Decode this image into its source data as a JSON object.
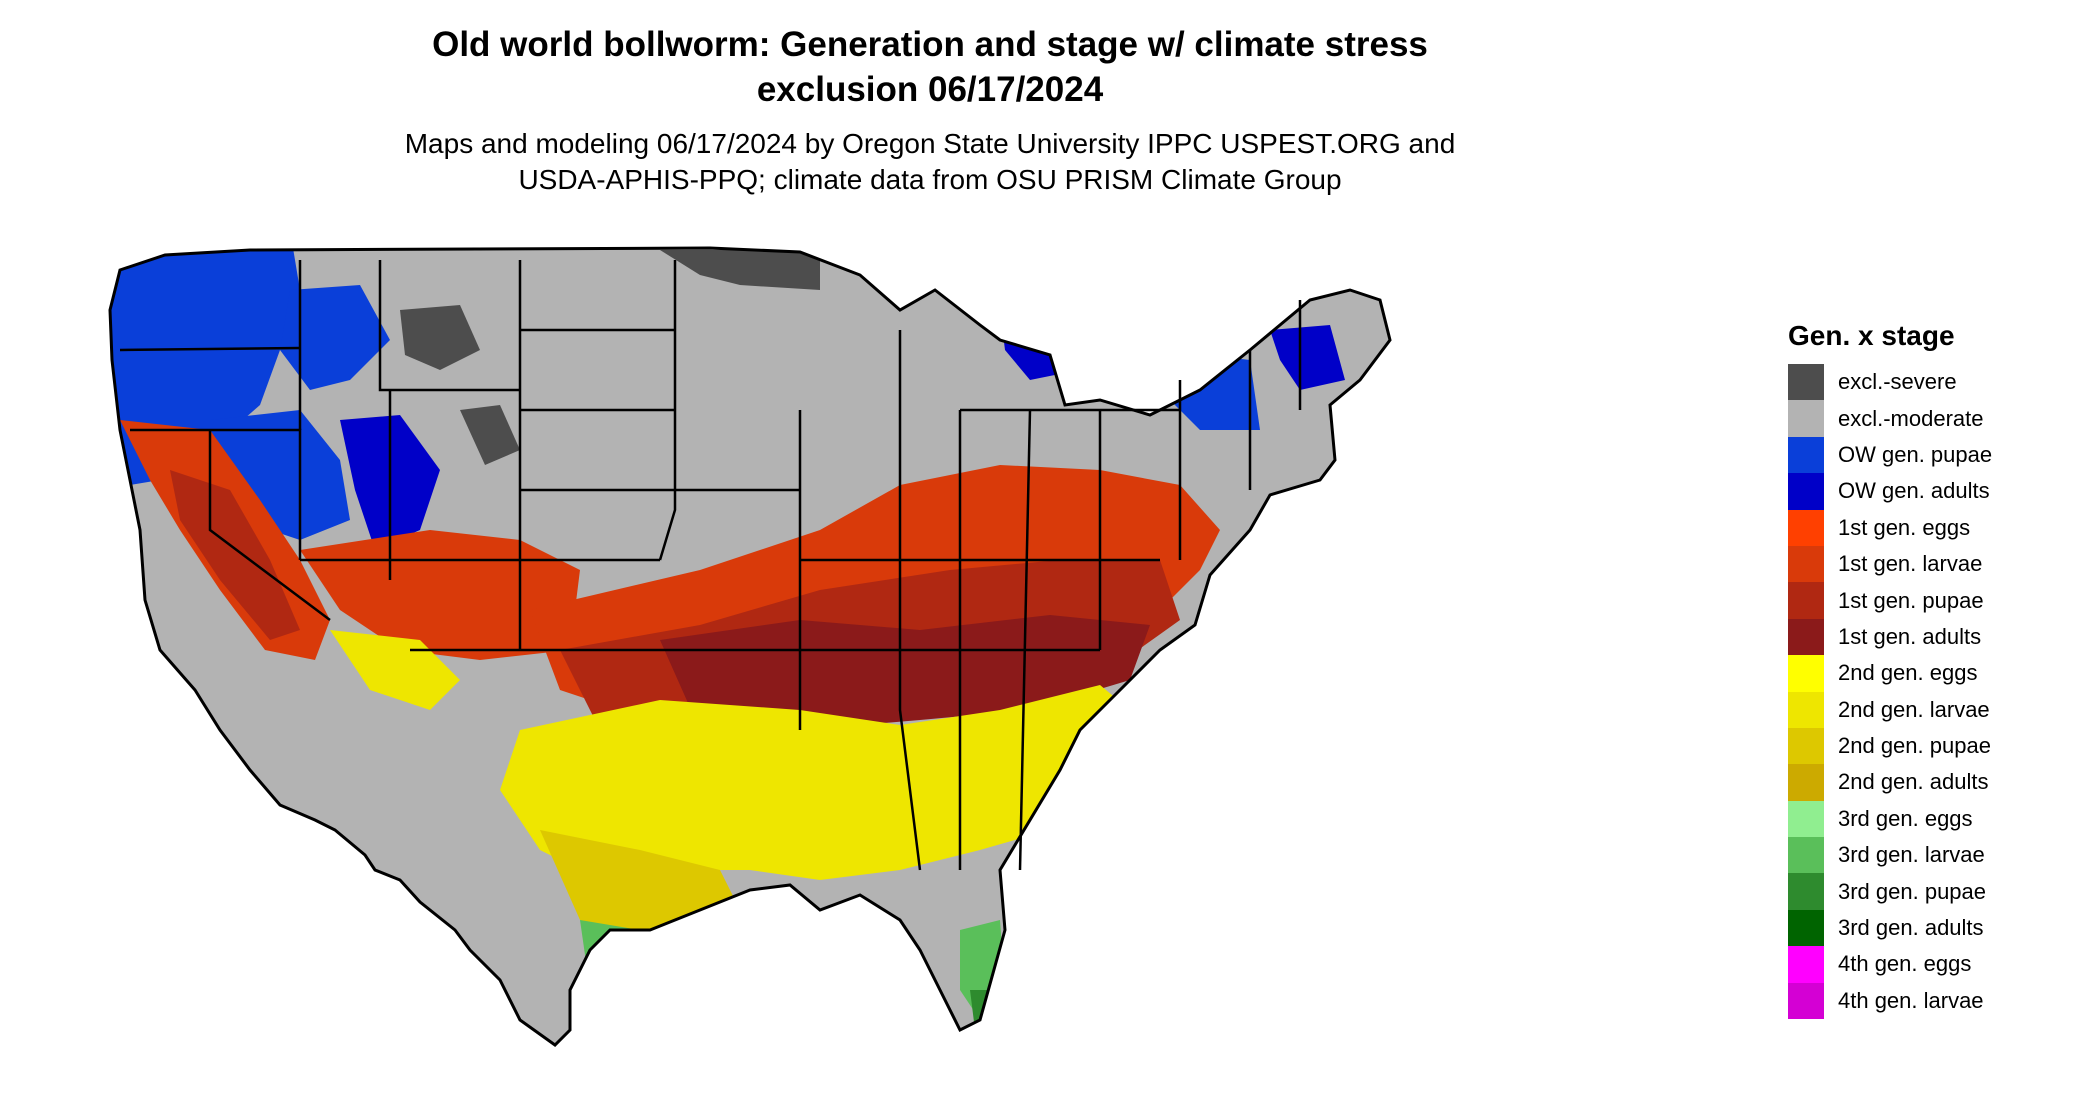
{
  "title": {
    "line1": "Old world bollworm: Generation and stage w/ climate stress",
    "line2": "exclusion 06/17/2024"
  },
  "subtitle": {
    "line1": "Maps and modeling 06/17/2024 by Oregon State University IPPC USPEST.ORG and",
    "line2": "USDA-APHIS-PPQ; climate data from OSU PRISM Climate Group"
  },
  "legend": {
    "title": "Gen. x stage",
    "items": [
      {
        "label": "excl.-severe",
        "color": "#4d4d4d"
      },
      {
        "label": "excl.-moderate",
        "color": "#b3b3b3"
      },
      {
        "label": "OW gen. pupae",
        "color": "#0a3fd9"
      },
      {
        "label": "OW gen. adults",
        "color": "#0000c8"
      },
      {
        "label": "1st gen. eggs",
        "color": "#ff4000"
      },
      {
        "label": "1st gen. larvae",
        "color": "#d93a0a"
      },
      {
        "label": "1st gen. pupae",
        "color": "#b02812"
      },
      {
        "label": "1st gen. adults",
        "color": "#8b1a1a"
      },
      {
        "label": "2nd gen. eggs",
        "color": "#ffff00"
      },
      {
        "label": "2nd gen. larvae",
        "color": "#eee600"
      },
      {
        "label": "2nd gen. pupae",
        "color": "#ddc800"
      },
      {
        "label": "2nd gen. adults",
        "color": "#ccaa00"
      },
      {
        "label": "3rd gen. eggs",
        "color": "#90ee90"
      },
      {
        "label": "3rd gen. larvae",
        "color": "#5abf5a"
      },
      {
        "label": "3rd gen. pupae",
        "color": "#2e8b2e"
      },
      {
        "label": "3rd gen. adults",
        "color": "#006400"
      },
      {
        "label": "4th gen. eggs",
        "color": "#ff00ff"
      },
      {
        "label": "4th gen. larvae",
        "color": "#d400d4"
      }
    ]
  }
}
